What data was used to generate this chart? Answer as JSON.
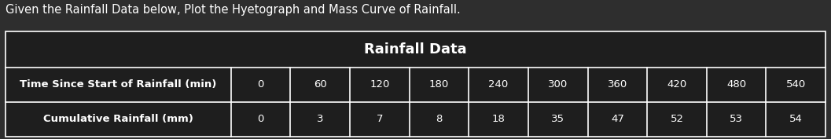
{
  "title_text": "Given the Rainfall Data below, Plot the Hyetograph and Mass Curve of Rainfall.",
  "table_title": "Rainfall Data",
  "col_header_1": "Time Since Start of Rainfall (min)",
  "col_header_2": "Cumulative Rainfall (mm)",
  "time_values": [
    0,
    60,
    120,
    180,
    240,
    300,
    360,
    420,
    480,
    540
  ],
  "rainfall_values": [
    0,
    3,
    7,
    8,
    18,
    35,
    47,
    52,
    53,
    54
  ],
  "bg_color": "#2e2e2e",
  "table_bg_color": "#1e1e1e",
  "text_color": "#ffffff",
  "border_color": "#ffffff",
  "title_fontsize": 10.5,
  "table_title_fontsize": 13,
  "cell_fontsize": 9.5,
  "header_fontsize": 9.5,
  "fig_width": 10.57,
  "fig_height": 1.77,
  "dpi": 100
}
